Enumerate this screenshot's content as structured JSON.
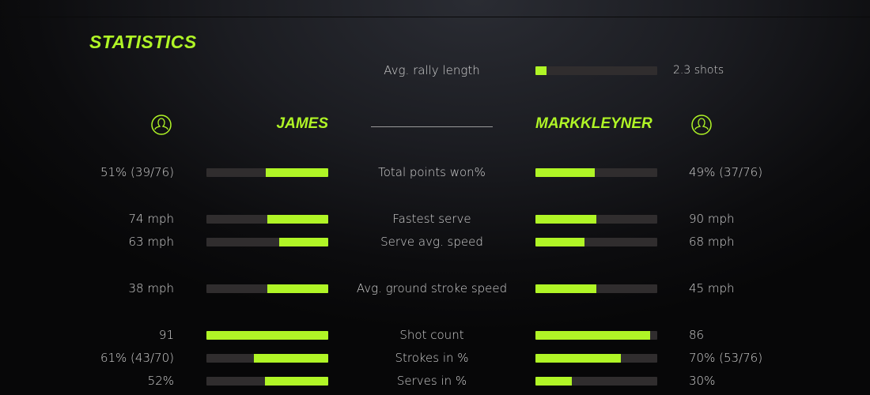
{
  "title": "STATISTICS",
  "accent": "#b0f526",
  "rally": {
    "label": "Avg. rally length",
    "value": "2.3 shots",
    "fill": 0.09
  },
  "players": {
    "left": {
      "name": "JAMES",
      "icon": "user-icon"
    },
    "right": {
      "name": "MARKKLEYNER",
      "icon": "user-icon"
    }
  },
  "rows": [
    {
      "label": "Total points won%",
      "left": "51% (39/76)",
      "right": "49% (37/76)",
      "left_fill": 0.51,
      "right_fill": 0.49
    },
    {
      "label": "Fastest serve",
      "left": "74 mph",
      "right": "90 mph",
      "left_fill": 0.5,
      "right_fill": 0.5
    },
    {
      "label": "Serve avg. speed",
      "left": "63 mph",
      "right": "68 mph",
      "left_fill": 0.4,
      "right_fill": 0.4
    },
    {
      "label": "Avg. ground stroke speed",
      "left": "38 mph",
      "right": "45 mph",
      "left_fill": 0.5,
      "right_fill": 0.5
    },
    {
      "label": "Shot count",
      "left": "91",
      "right": "86",
      "left_fill": 1.0,
      "right_fill": 0.94
    },
    {
      "label": "Strokes in %",
      "left": "61% (43/70)",
      "right": "70% (53/76)",
      "left_fill": 0.61,
      "right_fill": 0.7
    },
    {
      "label": "Serves in %",
      "left": "52%",
      "right": "30%",
      "left_fill": 0.52,
      "right_fill": 0.3
    }
  ]
}
